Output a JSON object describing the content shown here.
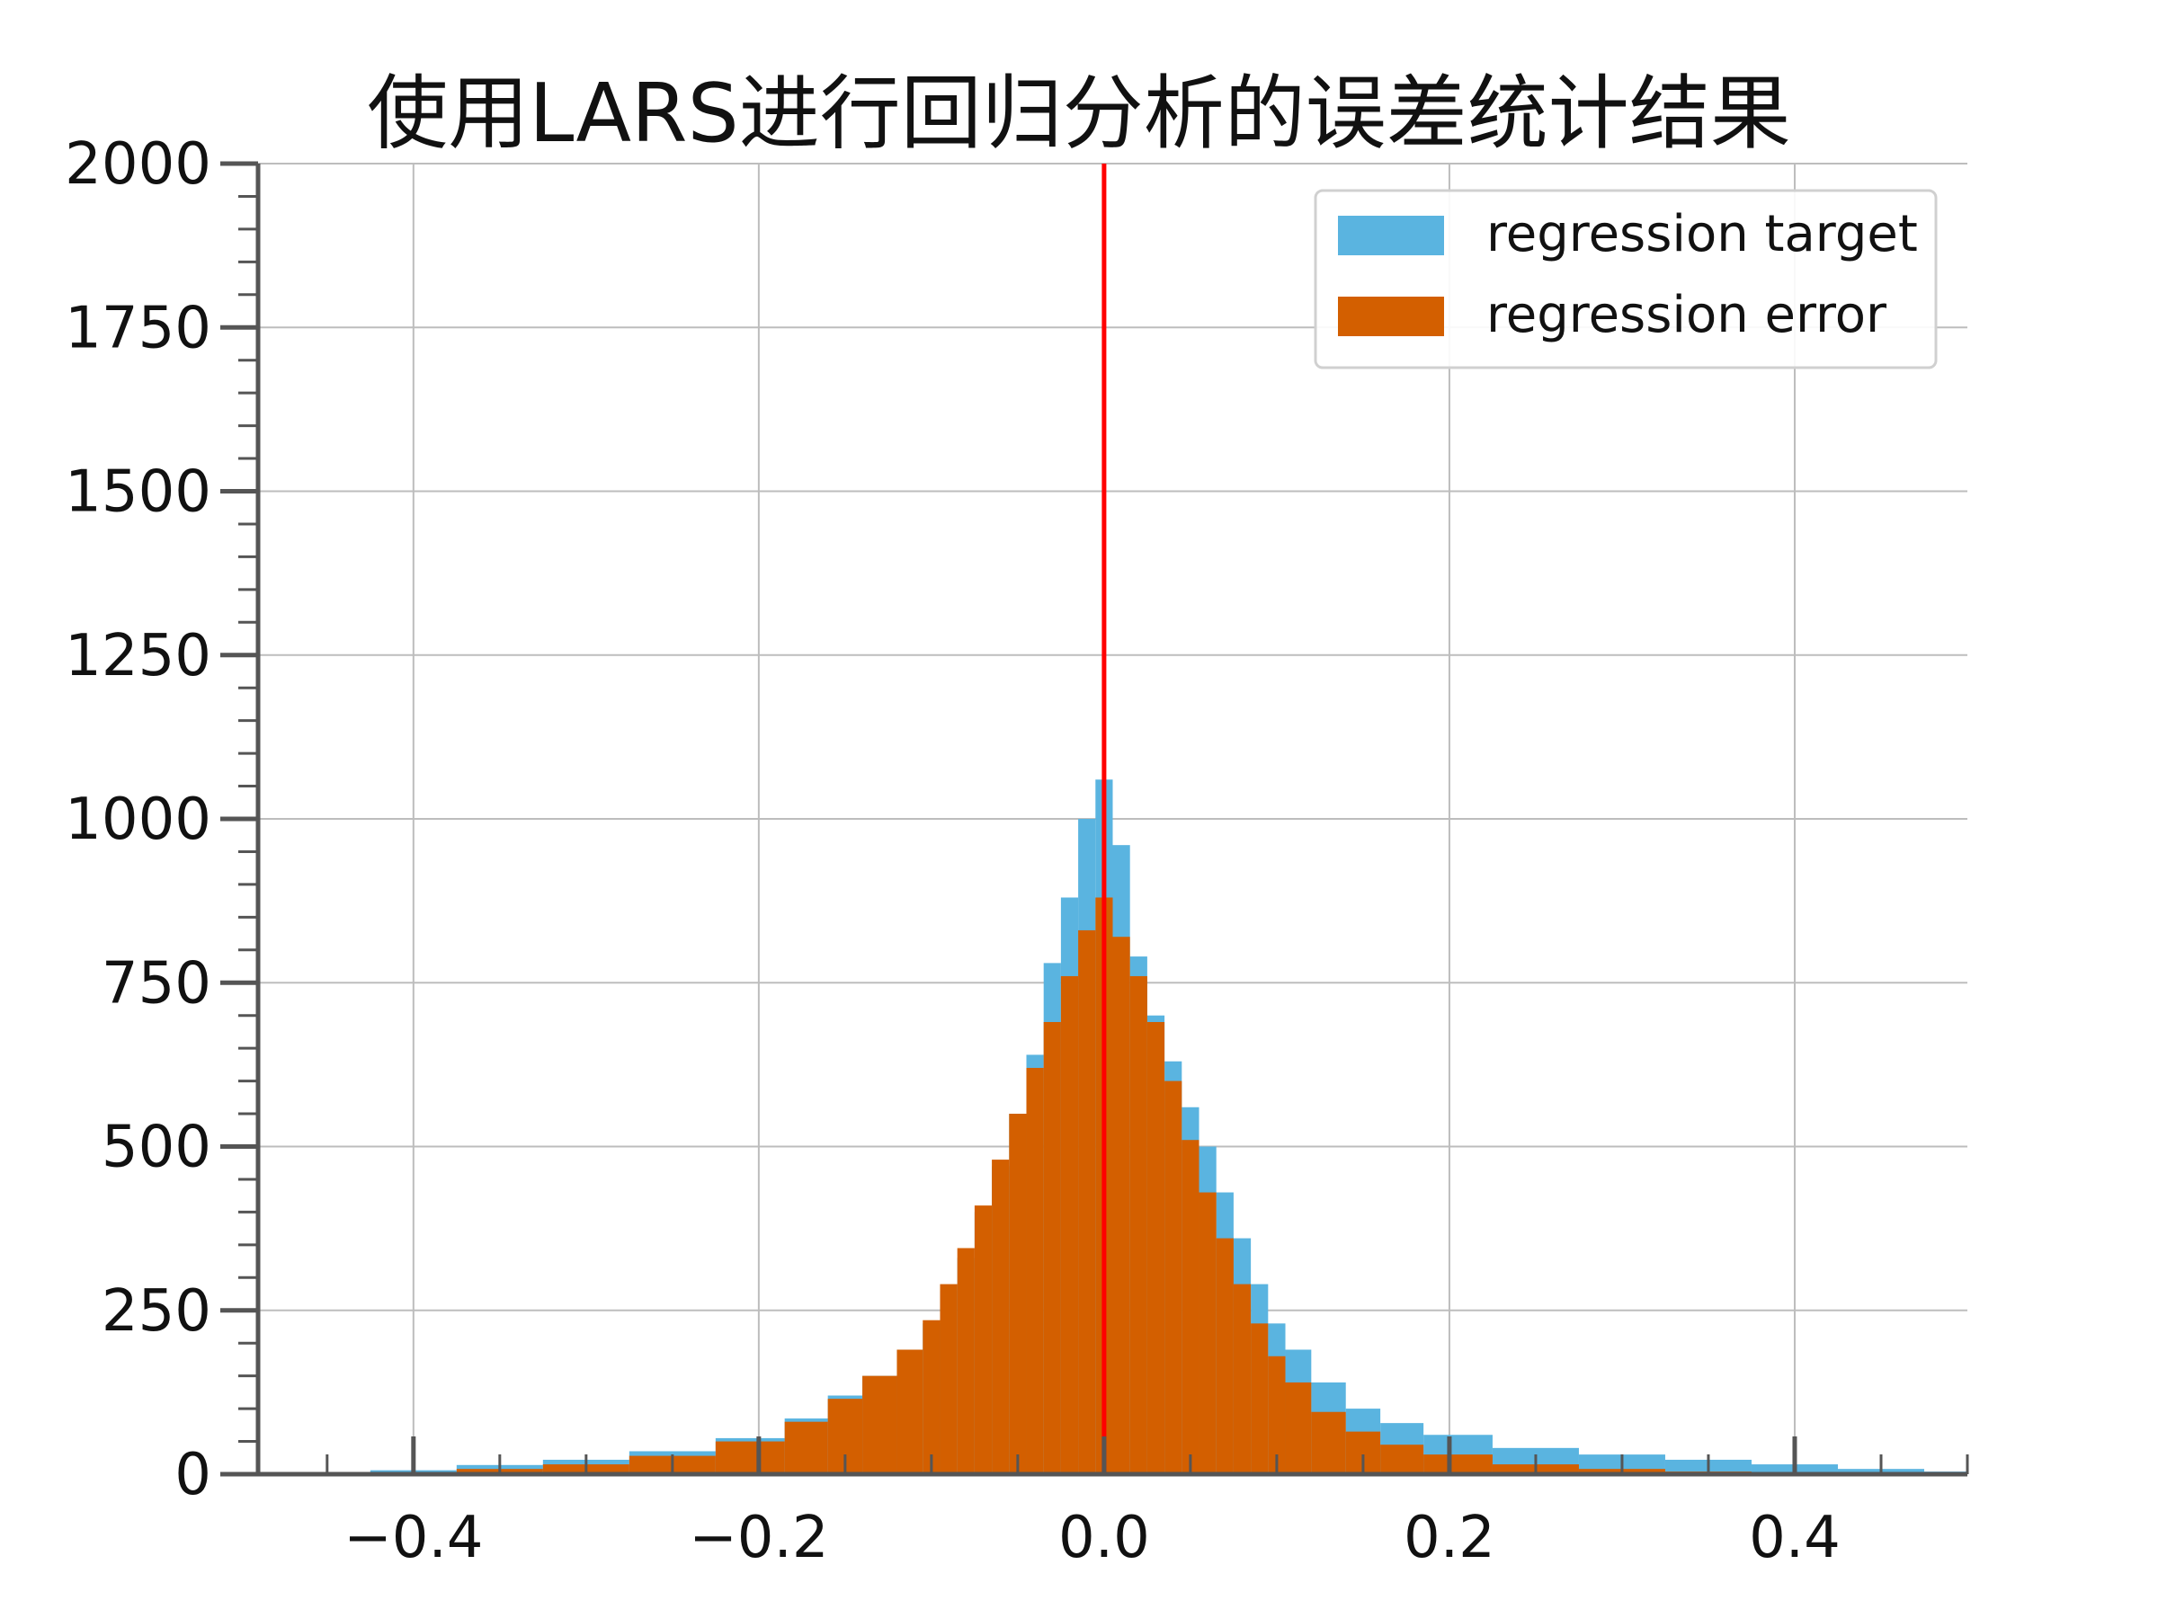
{
  "chart_data": {
    "type": "bar",
    "title": "使用LARS进行回归分析的误差统计结果",
    "xlabel": "",
    "ylabel": "",
    "xlim": [
      -0.49,
      0.5
    ],
    "ylim": [
      0,
      2000
    ],
    "grid": true,
    "legend_position": "top-right",
    "x_ticks": [
      -0.4,
      -0.2,
      0.0,
      0.2,
      0.4
    ],
    "x_tick_labels": [
      "−0.4",
      "−0.2",
      "0.0",
      "0.2",
      "0.4"
    ],
    "y_ticks": [
      0,
      250,
      500,
      750,
      1000,
      1250,
      1500,
      1750,
      2000
    ],
    "y_tick_labels": [
      "0",
      "250",
      "500",
      "750",
      "1000",
      "1250",
      "1500",
      "1750",
      "2000"
    ],
    "reference_line": {
      "x": 0.0,
      "color": "#ff0000"
    },
    "series_centers": [
      -0.45,
      -0.4,
      -0.35,
      -0.3,
      -0.25,
      -0.2,
      -0.17,
      -0.15,
      -0.13,
      -0.11,
      -0.1,
      -0.09,
      -0.08,
      -0.07,
      -0.06,
      -0.05,
      -0.04,
      -0.03,
      -0.02,
      -0.01,
      0.0,
      0.01,
      0.02,
      0.03,
      0.04,
      0.05,
      0.06,
      0.07,
      0.08,
      0.09,
      0.1,
      0.11,
      0.13,
      0.15,
      0.17,
      0.2,
      0.25,
      0.3,
      0.35,
      0.4,
      0.45,
      0.5
    ],
    "series": [
      {
        "name": "regression target",
        "color": "#5ab4e0",
        "values": [
          3,
          6,
          14,
          22,
          35,
          55,
          85,
          120,
          150,
          190,
          230,
          280,
          330,
          400,
          470,
          550,
          640,
          780,
          880,
          1000,
          1060,
          960,
          790,
          700,
          630,
          560,
          500,
          430,
          360,
          290,
          230,
          190,
          140,
          100,
          78,
          60,
          40,
          30,
          22,
          15,
          8,
          4
        ]
      },
      {
        "name": "regression error",
        "color": "#d35f00",
        "values": [
          1,
          3,
          8,
          15,
          28,
          50,
          80,
          115,
          150,
          190,
          235,
          290,
          345,
          410,
          480,
          550,
          620,
          690,
          760,
          830,
          880,
          820,
          760,
          690,
          600,
          510,
          430,
          360,
          290,
          230,
          180,
          140,
          95,
          65,
          45,
          30,
          15,
          8,
          4,
          2,
          1,
          0
        ]
      }
    ]
  }
}
